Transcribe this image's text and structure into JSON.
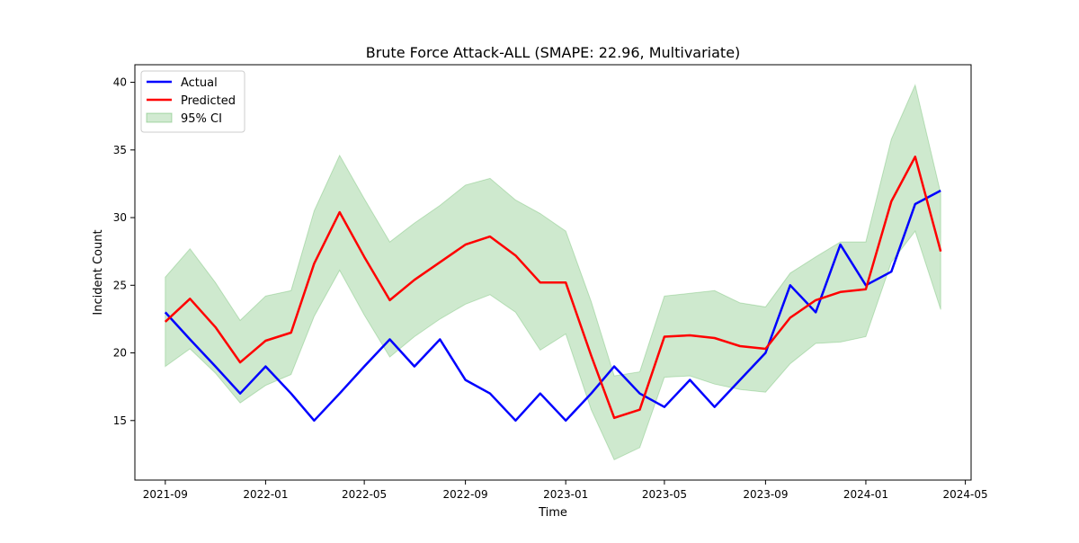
{
  "chart_data": {
    "type": "line",
    "title": "Brute Force Attack-ALL (SMAPE: 22.96, Multivariate)",
    "xlabel": "Time",
    "ylabel": "Incident Count",
    "x": [
      "2021-09",
      "2021-10",
      "2021-11",
      "2021-12",
      "2022-01",
      "2022-02",
      "2022-03",
      "2022-04",
      "2022-05",
      "2022-06",
      "2022-07",
      "2022-08",
      "2022-09",
      "2022-10",
      "2022-11",
      "2022-12",
      "2023-01",
      "2023-02",
      "2023-03",
      "2023-04",
      "2023-05",
      "2023-06",
      "2023-07",
      "2023-08",
      "2023-09",
      "2023-10",
      "2023-11",
      "2023-12",
      "2024-01",
      "2024-02",
      "2024-03",
      "2024-04"
    ],
    "xlim": [
      "2021-07-26",
      "2024-05-08"
    ],
    "ylim": [
      10.6,
      41.3
    ],
    "xticks": [
      "2021-09",
      "2022-01",
      "2022-05",
      "2022-09",
      "2023-01",
      "2023-05",
      "2023-09",
      "2024-01",
      "2024-05"
    ],
    "yticks": [
      15,
      20,
      25,
      30,
      35,
      40
    ],
    "series": [
      {
        "name": "Actual",
        "color": "#0000ff",
        "values": [
          23,
          21,
          19,
          17,
          19,
          17,
          15,
          17,
          19,
          21,
          19,
          21,
          18,
          17,
          15,
          17,
          15,
          17,
          19,
          17,
          16,
          18,
          16,
          18,
          20,
          25,
          23,
          28,
          25,
          26,
          31,
          32
        ]
      },
      {
        "name": "Predicted",
        "color": "#ff0000",
        "values": [
          22.3,
          24.0,
          21.9,
          19.3,
          20.9,
          21.5,
          26.6,
          30.4,
          27.1,
          23.9,
          25.4,
          26.7,
          28.0,
          28.6,
          27.2,
          25.2,
          25.2,
          19.8,
          15.2,
          15.8,
          21.2,
          21.3,
          21.1,
          20.5,
          20.3,
          22.6,
          23.9,
          24.5,
          24.7,
          31.2,
          34.5,
          27.5
        ]
      }
    ],
    "band": {
      "name": "95% CI",
      "color": "#2ca02c",
      "lower": [
        19.0,
        20.3,
        18.5,
        16.3,
        17.6,
        18.4,
        22.7,
        26.1,
        22.8,
        19.7,
        21.2,
        22.5,
        23.6,
        24.3,
        23.0,
        20.2,
        21.4,
        15.8,
        12.1,
        13.0,
        18.2,
        18.3,
        17.7,
        17.3,
        17.1,
        19.2,
        20.7,
        20.8,
        21.2,
        26.7,
        29.0,
        23.2
      ],
      "upper": [
        25.6,
        27.7,
        25.2,
        22.4,
        24.2,
        24.6,
        30.5,
        34.6,
        31.4,
        28.2,
        29.6,
        30.9,
        32.4,
        32.9,
        31.3,
        30.3,
        29.0,
        23.8,
        18.3,
        18.6,
        24.2,
        24.4,
        24.6,
        23.7,
        23.4,
        25.9,
        27.1,
        28.2,
        28.2,
        35.8,
        39.8,
        31.8
      ]
    },
    "grid": false,
    "legend_position": "top-left"
  }
}
